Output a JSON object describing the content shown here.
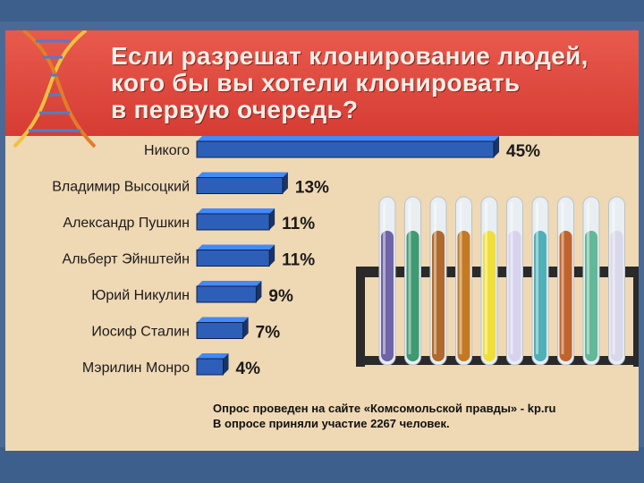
{
  "title_lines": [
    "Если разрешат клонирование людей,",
    "кого бы вы хотели клонировать",
    "в первую очередь?"
  ],
  "chart_data": {
    "type": "bar",
    "orientation": "horizontal",
    "title": "Если разрешат клонирование людей, кого бы вы хотели клонировать в первую очередь?",
    "categories": [
      "Никого",
      "Владимир Высоцкий",
      "Александр Пушкин",
      "Альберт Эйнштейн",
      "Юрий Никулин",
      "Иосиф Сталин",
      "Мэрилин Монро"
    ],
    "values": [
      45,
      13,
      11,
      11,
      9,
      7,
      4
    ],
    "value_labels": [
      "45%",
      "13%",
      "11%",
      "11%",
      "9%",
      "7%",
      "4%"
    ],
    "xlim": [
      0,
      45
    ],
    "grid": false,
    "legend": "none",
    "bar_color": "#2d5fb8"
  },
  "footnote": {
    "line1": "Опрос проведен на сайте «Комсомольской правды» - kp.ru",
    "line2": "В опросе приняли участие 2267 человек."
  },
  "tube_colors": [
    "#6f64a8",
    "#3f9a72",
    "#b06a2e",
    "#c47a22",
    "#f0df3a",
    "#d7d3ee",
    "#4fb0b8",
    "#c0632c",
    "#63b89a",
    "#d9d8ea"
  ]
}
